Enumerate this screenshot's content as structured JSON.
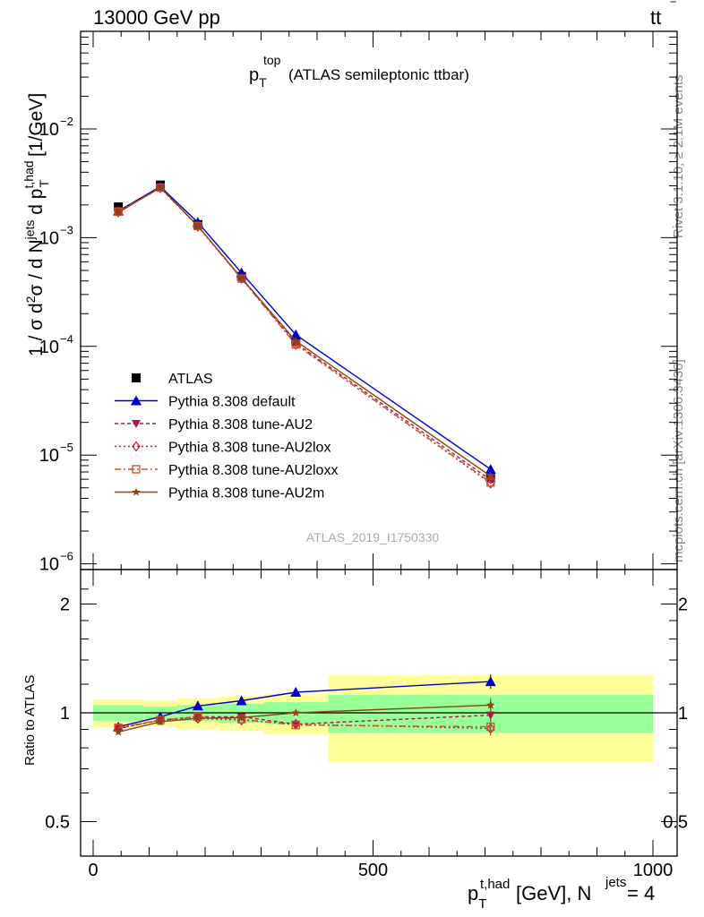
{
  "header": {
    "energy_label": "13000 GeV pp",
    "process_main": "tt",
    "process_bar": "‾"
  },
  "title": {
    "p": "p",
    "sub": "T",
    "sup": "top",
    "rest": "(ATLAS semileptonic ttbar)"
  },
  "side_labels": {
    "rivet": "Rivet 3.1.10, ≥ 2.1M events",
    "mcplots": "mcplots.cern.ch [arXiv:1306.3436]"
  },
  "watermark": "ATLAS_2019_I1750330",
  "y_axis": {
    "t1": "1 / σ d",
    "t1s": "2",
    "t2": "σ / d N",
    "t2s": "jets",
    "t3": " d p",
    "t3s": "t,had",
    "t3b": "T",
    "t4": " [1/GeV]"
  },
  "x_axis": {
    "p": "p",
    "sub": "T",
    "sup": "t,had",
    "mid": " [GeV], N",
    "sup2": "jets",
    "tail": " = 4"
  },
  "ratio_ylabel": "Ratio to ATLAS",
  "main_ticks": [
    {
      "m": "10",
      "e": "−2"
    },
    {
      "m": "10",
      "e": "−3"
    },
    {
      "m": "10",
      "e": "−4"
    },
    {
      "m": "10",
      "e": "−5"
    },
    {
      "m": "10",
      "e": "−6"
    }
  ],
  "ratio_ticks": [
    "2",
    "1",
    "0.5"
  ],
  "x_ticks": [
    "0",
    "500",
    "1000"
  ],
  "legend": [
    {
      "label": "ATLAS",
      "color": "#000000",
      "marker": "square",
      "dash": ""
    },
    {
      "label": "Pythia 8.308 default",
      "color": "#0000cc",
      "marker": "triangle-up",
      "dash": ""
    },
    {
      "label": "Pythia 8.308 tune-AU2",
      "color": "#b0124f",
      "marker": "triangle-down",
      "dash": "4,3"
    },
    {
      "label": "Pythia 8.308 tune-AU2lox",
      "color": "#c0203a",
      "marker": "diamond-open",
      "dash": "2,3"
    },
    {
      "label": "Pythia 8.308 tune-AU2loxx",
      "color": "#d0502a",
      "marker": "square-open",
      "dash": "7,3,2,3"
    },
    {
      "label": "Pythia 8.308 tune-AU2m",
      "color": "#8b4513",
      "marker": "star",
      "dash": ""
    }
  ],
  "chart_data": {
    "type": "line",
    "xlabel": "p_T^{t,had} [GeV], N^{jets} = 4",
    "ylabel": "1 / σ d²σ / d N^{jets} d p_T^{t,had} [1/GeV]",
    "xlim": [
      -20,
      1030
    ],
    "ylim": [
      9e-07,
      0.09
    ],
    "yscale": "log",
    "ratio_ylim": [
      0.38,
      2.3
    ],
    "ratio_ylabel": "Ratio to ATLAS",
    "x": [
      45,
      120,
      187,
      265,
      362,
      710
    ],
    "bins": [
      [
        0,
        90
      ],
      [
        90,
        150
      ],
      [
        150,
        225
      ],
      [
        225,
        305
      ],
      [
        305,
        420
      ],
      [
        420,
        1000
      ]
    ],
    "data": {
      "name": "ATLAS",
      "values": [
        0.00192,
        0.00305,
        0.00132,
        0.00044,
        0.000112,
        6.1e-06
      ],
      "band_1sigma": [
        0.05,
        0.04,
        0.05,
        0.06,
        0.07,
        0.12
      ],
      "band_2sigma": [
        0.09,
        0.08,
        0.1,
        0.11,
        0.13,
        0.27
      ]
    },
    "series": [
      {
        "name": "Pythia 8.308 default",
        "values": [
          0.00176,
          0.00295,
          0.00138,
          0.000475,
          0.000128,
          7.4e-06
        ],
        "ratio": [
          0.915,
          0.975,
          1.045,
          1.08,
          1.14,
          1.22
        ]
      },
      {
        "name": "Pythia 8.308 tune-AU2",
        "values": [
          0.00174,
          0.00287,
          0.00128,
          0.000425,
          0.000107,
          5.9e-06
        ],
        "ratio": [
          0.905,
          0.955,
          0.975,
          0.975,
          0.93,
          0.985
        ]
      },
      {
        "name": "Pythia 8.308 tune-AU2lox",
        "values": [
          0.00172,
          0.00287,
          0.00127,
          0.00042,
          0.000104,
          5.5e-06
        ],
        "ratio": [
          0.905,
          0.955,
          0.965,
          0.955,
          0.93,
          0.905
        ]
      },
      {
        "name": "Pythia 8.308 tune-AU2loxx",
        "values": [
          0.00174,
          0.00289,
          0.00128,
          0.00042,
          0.000104,
          5.6e-06
        ],
        "ratio": [
          0.91,
          0.955,
          0.975,
          0.96,
          0.925,
          0.915
        ]
      },
      {
        "name": "Pythia 8.308 tune-AU2m",
        "values": [
          0.0017,
          0.0029,
          0.00128,
          0.000425,
          0.000112,
          6.4e-06
        ],
        "ratio": [
          0.885,
          0.945,
          0.965,
          0.97,
          1.0,
          1.05
        ]
      }
    ]
  }
}
